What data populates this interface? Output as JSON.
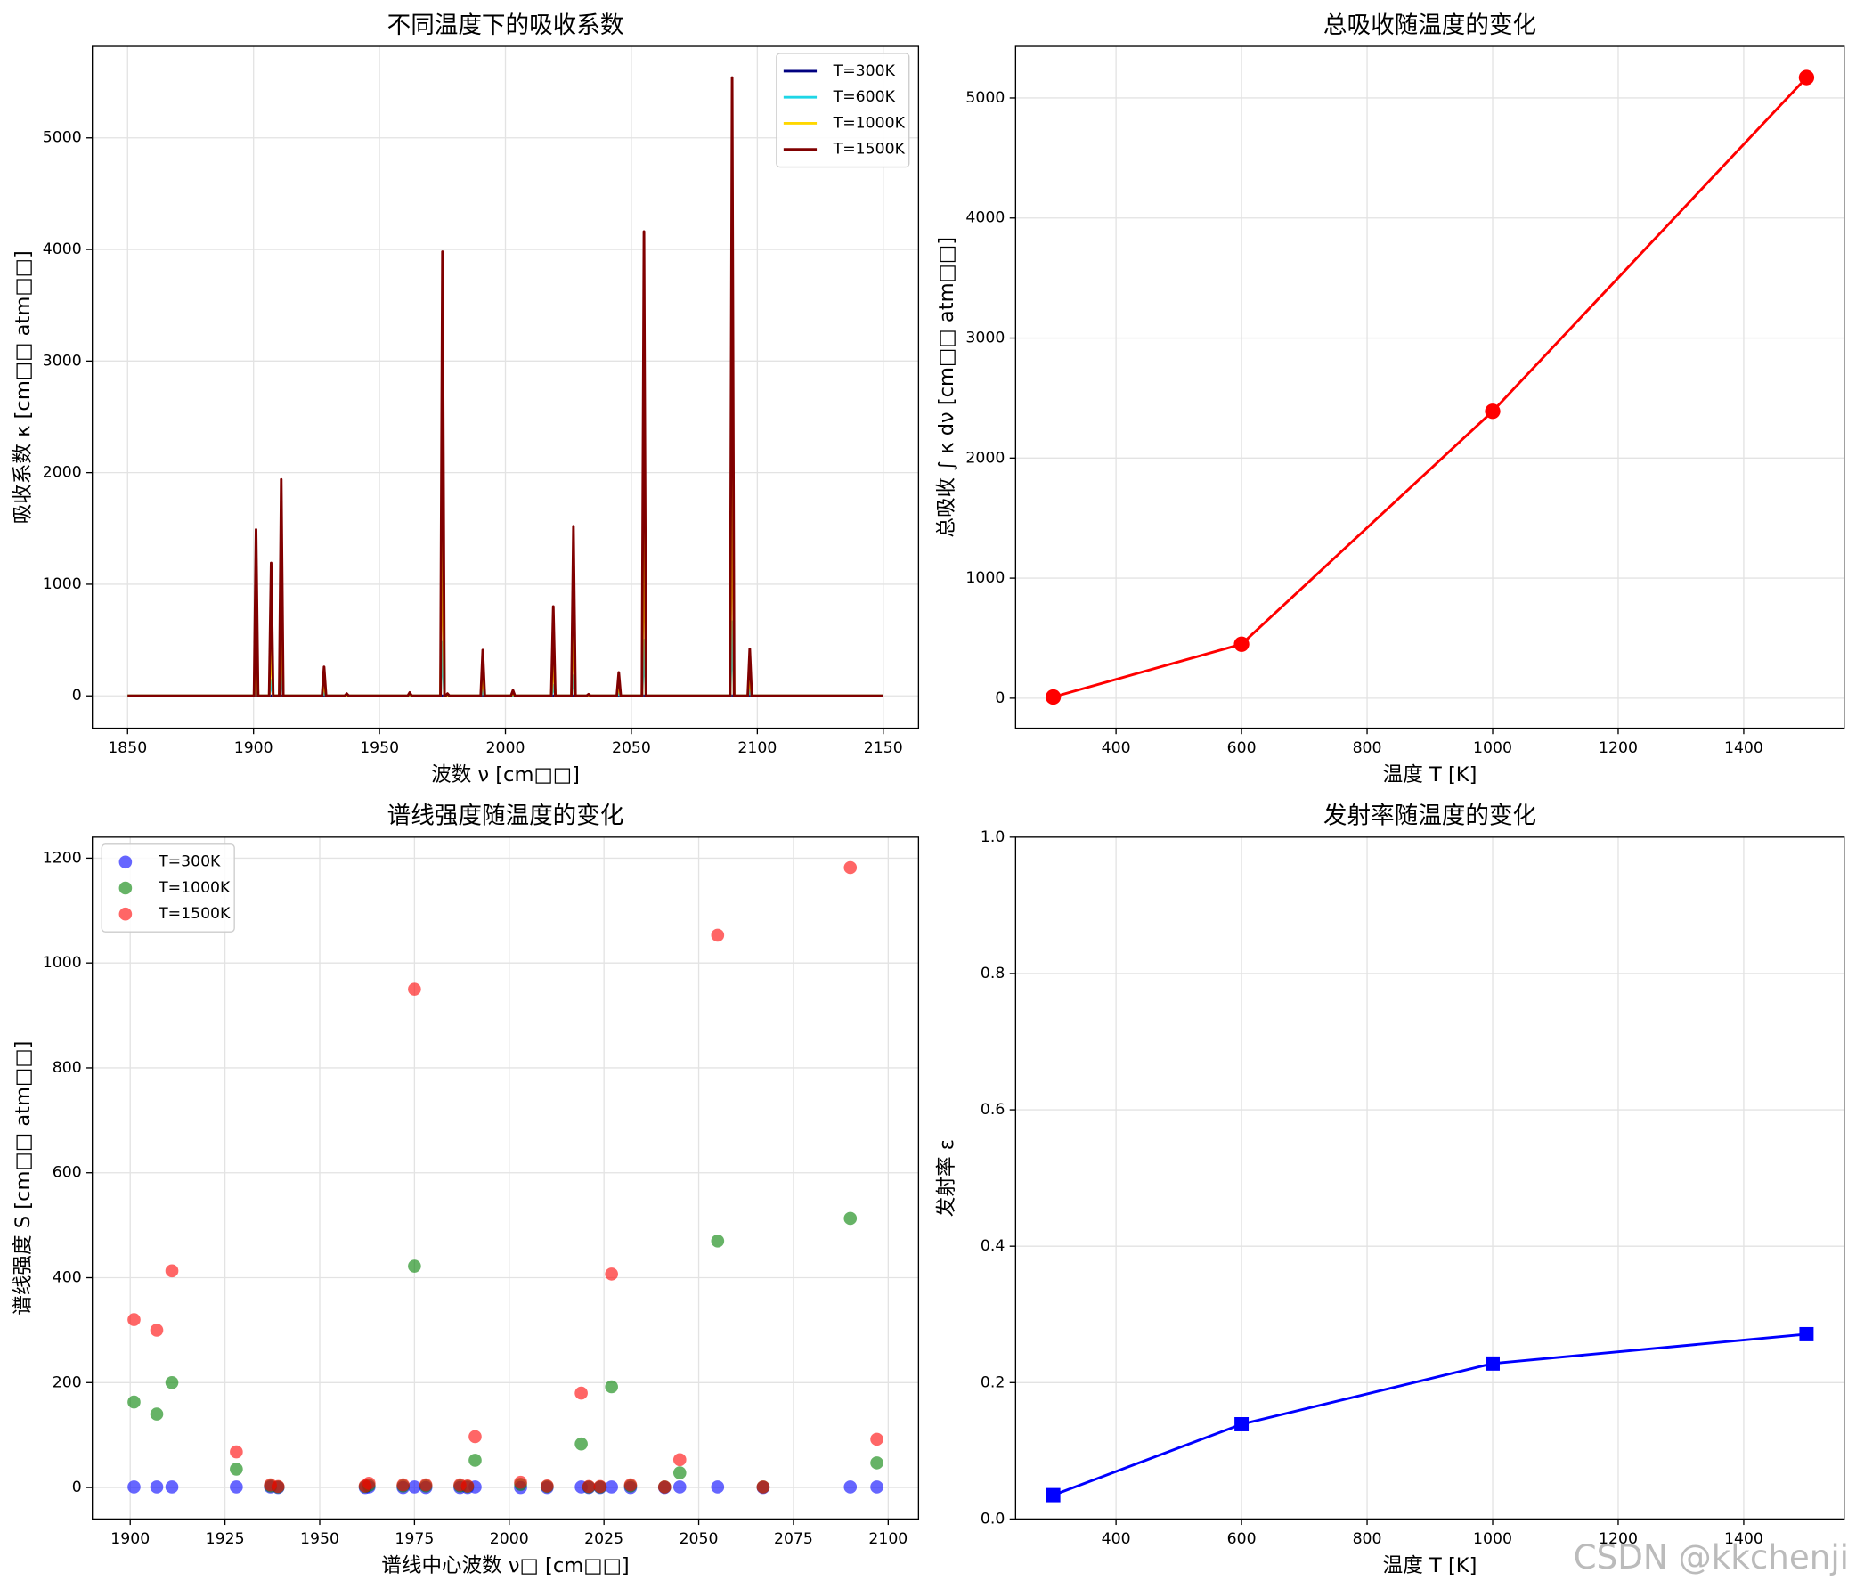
{
  "chart_data": [
    {
      "type": "line",
      "title": "不同温度下的吸收系数",
      "xlabel": "波数 ν [cm□□]",
      "ylabel": "吸收系数 κ [cm□□ atm□□]",
      "xlim": [
        1836,
        2164
      ],
      "xticks": [
        1850,
        1900,
        1950,
        2000,
        2050,
        2100,
        2150
      ],
      "ylim": [
        -290,
        5820
      ],
      "yticks": [
        0,
        1000,
        2000,
        3000,
        4000,
        5000
      ],
      "grid": true,
      "legend": "upper right",
      "x": [
        1850,
        1900.2,
        1901,
        1901.8,
        1906.2,
        1907,
        1907.8,
        1910.2,
        1911,
        1911.8,
        1927.2,
        1928,
        1928.8,
        1936.2,
        1937,
        1937.8,
        1961.2,
        1962,
        1962.8,
        1974.2,
        1975,
        1975.8,
        1976.2,
        1977,
        1977.8,
        1990.2,
        1991,
        1991.8,
        2002.2,
        2003,
        2003.8,
        2018.2,
        2019,
        2019.8,
        2026.2,
        2027,
        2027.8,
        2032.2,
        2033,
        2033.8,
        2044.2,
        2045,
        2045.8,
        2054.2,
        2055,
        2055.8,
        2089.2,
        2090,
        2090.8,
        2096.2,
        2097,
        2097.8,
        2150
      ],
      "series": [
        {
          "name": "T=300K",
          "color": "#000080",
          "values": [
            0,
            0,
            0,
            0,
            0,
            0,
            0,
            0,
            0,
            0,
            0,
            0,
            0,
            0,
            0,
            0,
            0,
            0,
            0,
            0,
            0,
            0,
            0,
            0,
            0,
            0,
            0,
            0,
            0,
            0,
            0,
            0,
            0,
            0,
            0,
            0,
            0,
            0,
            0,
            0,
            0,
            0,
            0,
            0,
            0,
            0,
            0,
            0,
            0,
            0,
            0,
            0,
            0
          ]
        },
        {
          "name": "T=600K",
          "color": "#1fd6e6",
          "values": [
            0,
            0,
            180,
            0,
            0,
            140,
            0,
            0,
            230,
            0,
            0,
            30,
            0,
            0,
            2,
            0,
            0,
            4,
            0,
            0,
            480,
            0,
            0,
            2,
            0,
            0,
            50,
            0,
            0,
            6,
            0,
            0,
            95,
            0,
            0,
            180,
            0,
            0,
            2,
            0,
            0,
            25,
            0,
            0,
            500,
            0,
            0,
            665,
            0,
            0,
            50,
            0,
            0
          ]
        },
        {
          "name": "T=1000K",
          "color": "#ffd700",
          "values": [
            0,
            0,
            670,
            0,
            0,
            540,
            0,
            0,
            870,
            0,
            0,
            120,
            0,
            0,
            9,
            0,
            0,
            14,
            0,
            0,
            1790,
            0,
            0,
            9,
            0,
            0,
            185,
            0,
            0,
            22,
            0,
            0,
            360,
            0,
            0,
            680,
            0,
            0,
            7,
            0,
            0,
            95,
            0,
            0,
            1870,
            0,
            0,
            2490,
            0,
            0,
            190,
            0,
            0
          ]
        },
        {
          "name": "T=1500K",
          "color": "#800000",
          "values": [
            0,
            0,
            1490,
            0,
            0,
            1190,
            0,
            0,
            1940,
            0,
            0,
            260,
            0,
            0,
            20,
            0,
            0,
            30,
            0,
            0,
            3980,
            0,
            0,
            20,
            0,
            0,
            410,
            0,
            0,
            50,
            0,
            0,
            800,
            0,
            0,
            1520,
            0,
            0,
            15,
            0,
            0,
            210,
            0,
            0,
            4160,
            0,
            0,
            5540,
            0,
            0,
            420,
            0,
            0
          ]
        }
      ]
    },
    {
      "type": "line",
      "title": "总吸收随温度的变化",
      "xlabel": "温度 T [K]",
      "ylabel": "总吸收 ∫ κ dν [cm□□ atm□□]",
      "xlim": [
        240,
        1560
      ],
      "xticks": [
        400,
        600,
        800,
        1000,
        1200,
        1400
      ],
      "ylim": [
        -250,
        5430
      ],
      "yticks": [
        0,
        1000,
        2000,
        3000,
        4000,
        5000
      ],
      "grid": true,
      "x": [
        300,
        600,
        1000,
        1500
      ],
      "values": [
        10,
        450,
        2390,
        5170
      ],
      "color": "#ff0000",
      "marker": "o"
    },
    {
      "type": "scatter",
      "title": "谱线强度随温度的变化",
      "xlabel": "谱线中心波数 ν□ [cm□□]",
      "ylabel": "谱线强度 S [cm□□ atm□□]",
      "xlim": [
        1890,
        2108
      ],
      "xticks": [
        1900,
        1925,
        1950,
        1975,
        2000,
        2025,
        2050,
        2075,
        2100
      ],
      "ylim": [
        -60,
        1240
      ],
      "yticks": [
        0,
        200,
        400,
        600,
        800,
        1000,
        1200
      ],
      "grid": true,
      "legend": "upper left",
      "x": [
        1901,
        1907,
        1911,
        1928,
        1937,
        1939,
        1962,
        1963,
        1972,
        1975,
        1978,
        1987,
        1989,
        1991,
        2003,
        2010,
        2019,
        2021,
        2024,
        2027,
        2032,
        2041,
        2045,
        2055,
        2067,
        2090,
        2097
      ],
      "series": [
        {
          "name": "T=300K",
          "color": "#0000ff",
          "values": [
            1,
            1,
            1,
            1,
            1,
            0,
            0,
            1,
            0,
            1,
            0,
            0,
            0,
            1,
            0,
            0,
            1,
            0,
            0,
            1,
            0,
            0,
            1,
            1,
            0,
            1,
            1
          ]
        },
        {
          "name": "T=1000K",
          "color": "#008000",
          "values": [
            163,
            140,
            200,
            35,
            3,
            1,
            2,
            4,
            3,
            422,
            3,
            3,
            2,
            52,
            6,
            2,
            83,
            1,
            1,
            192,
            3,
            1,
            28,
            470,
            1,
            513,
            47
          ]
        },
        {
          "name": "T=1500K",
          "color": "#ff0000",
          "values": [
            320,
            300,
            413,
            68,
            5,
            2,
            3,
            8,
            5,
            950,
            5,
            5,
            3,
            97,
            10,
            3,
            180,
            2,
            2,
            407,
            5,
            1,
            53,
            1053,
            1,
            1182,
            92
          ]
        }
      ]
    },
    {
      "type": "line",
      "title": "发射率随温度的变化",
      "xlabel": "温度 T [K]",
      "ylabel": "发射率 ε",
      "xlim": [
        240,
        1560
      ],
      "xticks": [
        400,
        600,
        800,
        1000,
        1200,
        1400
      ],
      "ylim": [
        0,
        1
      ],
      "yticks": [
        {
          "value": 0,
          "label": "0.0"
        },
        0.2,
        0.4,
        0.6,
        0.8,
        {
          "value": 1,
          "label": "1.0"
        }
      ],
      "grid": true,
      "x": [
        300,
        600,
        1000,
        1500
      ],
      "values": [
        0.035,
        0.139,
        0.228,
        0.271
      ],
      "color": "#0000ff",
      "marker": "s"
    }
  ],
  "watermark": "CSDN @kkchenji"
}
